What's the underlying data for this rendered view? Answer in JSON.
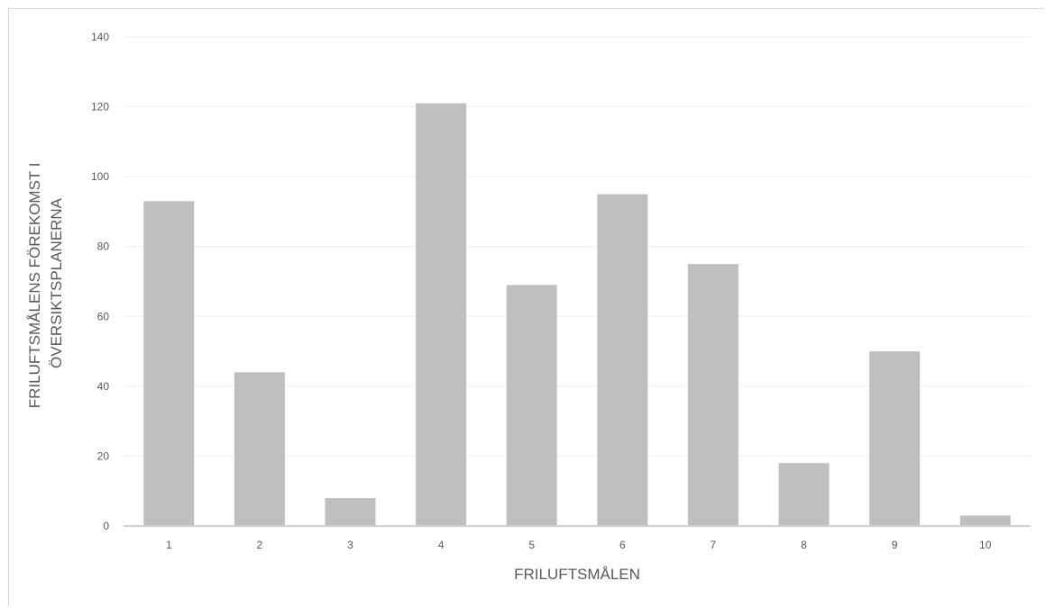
{
  "chart_data": {
    "type": "bar",
    "title": "",
    "xlabel": "FRILUFTSMÅLEN",
    "ylabel_lines": [
      "FRILUFTSMÅLENS FÖREKOMST I",
      "ÖVERSIKTSPLANERNA"
    ],
    "categories": [
      "1",
      "2",
      "3",
      "4",
      "5",
      "6",
      "7",
      "8",
      "9",
      "10"
    ],
    "values": [
      93,
      44,
      8,
      121,
      69,
      95,
      75,
      18,
      50,
      3
    ],
    "ylim": [
      0,
      140
    ],
    "yticks": [
      0,
      20,
      40,
      60,
      80,
      100,
      120,
      140
    ],
    "grid": true,
    "legend": "none",
    "colors": {
      "bar": "#bfbfbf",
      "grid": "#efefef",
      "axis": "#d0d0d0",
      "text": "#595959"
    }
  }
}
